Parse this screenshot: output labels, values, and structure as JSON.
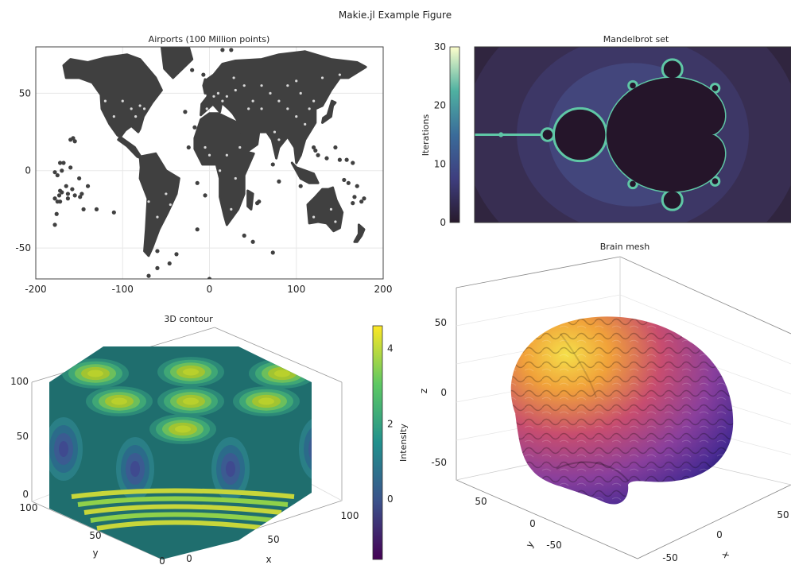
{
  "figure": {
    "title": "Makie.jl Example Figure"
  },
  "chart_data": [
    {
      "type": "scatter",
      "title": "Airports (100 Million points)",
      "xlabel": "",
      "ylabel": "",
      "xlim": [
        -200,
        200
      ],
      "ylim": [
        -70,
        80
      ],
      "xticks": [
        -200,
        -100,
        0,
        100,
        200
      ],
      "xtick_labels": [
        "-200",
        "-100",
        "0",
        "100",
        "200"
      ],
      "yticks": [
        -50,
        0,
        50
      ],
      "ytick_labels": [
        "-50",
        "0",
        "50"
      ],
      "grid": true,
      "color": "#404040",
      "landmasses": [
        {
          "name": "north-america",
          "lonlat": [
            [
              -168,
              68
            ],
            [
              -160,
              72
            ],
            [
              -140,
              70
            ],
            [
              -120,
              73
            ],
            [
              -95,
              75
            ],
            [
              -80,
              72
            ],
            [
              -62,
              60
            ],
            [
              -55,
              52
            ],
            [
              -66,
              44
            ],
            [
              -76,
              35
            ],
            [
              -80,
              27
            ],
            [
              -82,
              25
            ],
            [
              -90,
              29
            ],
            [
              -97,
              26
            ],
            [
              -105,
              20
            ],
            [
              -95,
              16
            ],
            [
              -83,
              9
            ],
            [
              -78,
              8
            ],
            [
              -86,
              15
            ],
            [
              -106,
              23
            ],
            [
              -115,
              30
            ],
            [
              -124,
              40
            ],
            [
              -125,
              49
            ],
            [
              -135,
              57
            ],
            [
              -150,
              60
            ],
            [
              -165,
              60
            ]
          ]
        },
        {
          "name": "greenland",
          "lonlat": [
            [
              -55,
              80
            ],
            [
              -25,
              82
            ],
            [
              -20,
              72
            ],
            [
              -42,
              60
            ],
            [
              -52,
              66
            ]
          ]
        },
        {
          "name": "south-america",
          "lonlat": [
            [
              -80,
              9
            ],
            [
              -62,
              11
            ],
            [
              -50,
              0
            ],
            [
              -35,
              -5
            ],
            [
              -38,
              -15
            ],
            [
              -48,
              -27
            ],
            [
              -58,
              -38
            ],
            [
              -66,
              -50
            ],
            [
              -70,
              -55
            ],
            [
              -75,
              -52
            ],
            [
              -73,
              -38
            ],
            [
              -71,
              -18
            ],
            [
              -80,
              -5
            ],
            [
              -79,
              2
            ]
          ]
        },
        {
          "name": "africa",
          "lonlat": [
            [
              -17,
              21
            ],
            [
              -10,
              33
            ],
            [
              0,
              37
            ],
            [
              10,
              37
            ],
            [
              32,
              31
            ],
            [
              35,
              28
            ],
            [
              43,
              12
            ],
            [
              51,
              11
            ],
            [
              40,
              -3
            ],
            [
              40,
              -15
            ],
            [
              33,
              -25
            ],
            [
              20,
              -35
            ],
            [
              17,
              -29
            ],
            [
              12,
              -17
            ],
            [
              12,
              -5
            ],
            [
              8,
              4
            ],
            [
              -8,
              4
            ],
            [
              -17,
              14
            ]
          ]
        },
        {
          "name": "eurasia",
          "lonlat": [
            [
              -10,
              36
            ],
            [
              -9,
              43
            ],
            [
              -2,
              48
            ],
            [
              -5,
              58
            ],
            [
              5,
              62
            ],
            [
              15,
              69
            ],
            [
              30,
              71
            ],
            [
              60,
              72
            ],
            [
              80,
              75
            ],
            [
              110,
              77
            ],
            [
              140,
              72
            ],
            [
              170,
              70
            ],
            [
              180,
              67
            ],
            [
              160,
              60
            ],
            [
              150,
              60
            ],
            [
              140,
              52
            ],
            [
              130,
              42
            ],
            [
              122,
              40
            ],
            [
              122,
              31
            ],
            [
              110,
              20
            ],
            [
              105,
              10
            ],
            [
              100,
              5
            ],
            [
              98,
              15
            ],
            [
              90,
              22
            ],
            [
              80,
              15
            ],
            [
              77,
              8
            ],
            [
              72,
              20
            ],
            [
              66,
              25
            ],
            [
              57,
              25
            ],
            [
              55,
              17
            ],
            [
              45,
              13
            ],
            [
              38,
              22
            ],
            [
              35,
              30
            ],
            [
              27,
              37
            ],
            [
              22,
              40
            ],
            [
              14,
              44
            ],
            [
              12,
              38
            ],
            [
              4,
              43
            ]
          ]
        },
        {
          "name": "uk",
          "lonlat": [
            [
              -5,
              50
            ],
            [
              1,
              51
            ],
            [
              0,
              57
            ],
            [
              -5,
              59
            ],
            [
              -7,
              55
            ]
          ]
        },
        {
          "name": "japan",
          "lonlat": [
            [
              130,
              31
            ],
            [
              140,
              35
            ],
            [
              142,
              42
            ],
            [
              145,
              44
            ],
            [
              141,
              45
            ],
            [
              136,
              36
            ],
            [
              131,
              34
            ]
          ]
        },
        {
          "name": "indonesia",
          "lonlat": [
            [
              95,
              5
            ],
            [
              105,
              -5
            ],
            [
              115,
              -8
            ],
            [
              125,
              -8
            ],
            [
              120,
              -2
            ],
            [
              110,
              0
            ],
            [
              100,
              2
            ]
          ]
        },
        {
          "name": "australia",
          "lonlat": [
            [
              113,
              -22
            ],
            [
              122,
              -17
            ],
            [
              130,
              -12
            ],
            [
              137,
              -12
            ],
            [
              142,
              -11
            ],
            [
              146,
              -19
            ],
            [
              153,
              -27
            ],
            [
              150,
              -37
            ],
            [
              143,
              -39
            ],
            [
              135,
              -34
            ],
            [
              125,
              -33
            ],
            [
              115,
              -34
            ]
          ]
        },
        {
          "name": "new-zealand",
          "lonlat": [
            [
              172,
              -35
            ],
            [
              178,
              -38
            ],
            [
              175,
              -42
            ],
            [
              170,
              -46
            ],
            [
              167,
              -46
            ],
            [
              172,
              -41
            ]
          ]
        },
        {
          "name": "madagascar",
          "lonlat": [
            [
              44,
              -13
            ],
            [
              50,
              -15
            ],
            [
              48,
              -25
            ],
            [
              44,
              -23
            ]
          ]
        }
      ],
      "islands": [
        [
          -157,
          21
        ],
        [
          -160,
          20
        ],
        [
          -155,
          19
        ],
        [
          -149,
          -17
        ],
        [
          -175,
          -20
        ],
        [
          -178,
          -18
        ],
        [
          -170,
          -14
        ],
        [
          -172,
          -13
        ],
        [
          -140,
          -10
        ],
        [
          -130,
          -25
        ],
        [
          -110,
          -27
        ],
        [
          -165,
          -10
        ],
        [
          -158,
          -12
        ],
        [
          -178,
          -1
        ],
        [
          -175,
          -3
        ],
        [
          -173,
          -16
        ],
        [
          -176,
          -28
        ],
        [
          -178,
          -35
        ],
        [
          -170,
          0
        ],
        [
          -168,
          5
        ],
        [
          -163,
          -15
        ],
        [
          -172,
          -20
        ],
        [
          -60,
          -52
        ],
        [
          -38,
          -54
        ],
        [
          -14,
          -38
        ],
        [
          -24,
          15
        ],
        [
          -28,
          38
        ],
        [
          -17,
          28
        ],
        [
          -20,
          65
        ],
        [
          -7,
          62
        ],
        [
          15,
          78
        ],
        [
          25,
          78
        ],
        [
          55,
          -21
        ],
        [
          57,
          -20
        ],
        [
          73,
          4
        ],
        [
          80,
          -7
        ],
        [
          105,
          -10
        ],
        [
          135,
          8
        ],
        [
          145,
          15
        ],
        [
          150,
          7
        ],
        [
          158,
          7
        ],
        [
          165,
          5
        ],
        [
          170,
          -10
        ],
        [
          167,
          -17
        ],
        [
          178,
          -18
        ],
        [
          165,
          -21
        ],
        [
          155,
          -6
        ],
        [
          160,
          -8
        ],
        [
          175,
          -20
        ],
        [
          -46,
          -60
        ],
        [
          -60,
          -63
        ],
        [
          -70,
          -68
        ],
        [
          0,
          -70
        ],
        [
          165,
          -78
        ],
        [
          73,
          -53
        ],
        [
          50,
          -46
        ],
        [
          -5,
          -16
        ],
        [
          -14,
          -8
        ],
        [
          120,
          15
        ],
        [
          125,
          10
        ],
        [
          122,
          13
        ],
        [
          40,
          -42
        ],
        [
          -155,
          -16
        ],
        [
          -147,
          -15
        ],
        [
          -163,
          -18
        ],
        [
          -172,
          5
        ],
        [
          -160,
          2
        ],
        [
          -150,
          -5
        ],
        [
          -145,
          -25
        ]
      ],
      "scatter_points": [
        [
          -100,
          45
        ],
        [
          -90,
          40
        ],
        [
          -80,
          42
        ],
        [
          -110,
          35
        ],
        [
          -75,
          40
        ],
        [
          10,
          50
        ],
        [
          20,
          48
        ],
        [
          30,
          52
        ],
        [
          40,
          55
        ],
        [
          50,
          45
        ],
        [
          60,
          40
        ],
        [
          70,
          50
        ],
        [
          80,
          45
        ],
        [
          90,
          40
        ],
        [
          100,
          35
        ],
        [
          110,
          30
        ],
        [
          115,
          40
        ],
        [
          105,
          50
        ],
        [
          90,
          55
        ],
        [
          120,
          45
        ],
        [
          15,
          45
        ],
        [
          5,
          48
        ],
        [
          -3,
          40
        ],
        [
          -70,
          -20
        ],
        [
          -50,
          -15
        ],
        [
          25,
          -25
        ],
        [
          30,
          -5
        ],
        [
          20,
          10
        ],
        [
          35,
          15
        ],
        [
          80,
          20
        ],
        [
          75,
          25
        ],
        [
          140,
          -25
        ],
        [
          145,
          -33
        ],
        [
          120,
          -30
        ],
        [
          -120,
          45
        ],
        [
          -85,
          35
        ],
        [
          28,
          60
        ],
        [
          45,
          40
        ],
        [
          60,
          55
        ],
        [
          100,
          58
        ],
        [
          130,
          60
        ],
        [
          150,
          62
        ],
        [
          -60,
          -30
        ],
        [
          -45,
          -22
        ],
        [
          0,
          10
        ],
        [
          -5,
          15
        ],
        [
          12,
          0
        ]
      ]
    },
    {
      "type": "heatmap",
      "title": "Mandelbrot set",
      "colorbar": {
        "label": "Iterations",
        "range": [
          0,
          30
        ],
        "ticks": [
          0,
          10,
          20,
          30
        ],
        "tick_labels": [
          "0",
          "10",
          "20",
          "30"
        ],
        "colormap": "deep"
      },
      "xlim": [
        -2,
        1
      ],
      "ylim": [
        -1,
        1
      ],
      "max_iterations": 30,
      "colors": {
        "background": "#30253f",
        "ring": "#3a3666",
        "edge": "#5fc7a6",
        "inside": "#25152a"
      }
    },
    {
      "type": "contour3d",
      "title": "3D contour",
      "xlabel": "x",
      "ylabel": "y",
      "xticks": [
        0,
        50,
        100
      ],
      "xtick_labels": [
        "0",
        "50",
        "100"
      ],
      "yticks": [
        0,
        50,
        100
      ],
      "ytick_labels": [
        "0",
        "50",
        "100"
      ],
      "zticks": [
        0,
        50,
        100
      ],
      "ztick_labels": [
        "0",
        "50",
        "100"
      ],
      "colorbar": {
        "label": "Intensity",
        "range": [
          -1.6,
          4.6
        ],
        "ticks": [
          0,
          2,
          4
        ],
        "tick_labels": [
          "0",
          "2",
          "4"
        ],
        "colormap": "viridis"
      }
    },
    {
      "type": "mesh3d",
      "title": "Brain mesh",
      "zlabel": "z",
      "xlabel": "x",
      "ylabel": "y",
      "zticks": [
        -50,
        0,
        50
      ],
      "ztick_labels": [
        "-50",
        "0",
        "50"
      ],
      "yticks": [
        50,
        0,
        -50
      ],
      "ytick_labels": [
        "50",
        "0",
        "-50"
      ],
      "xticks": [
        -50,
        0,
        50
      ],
      "xtick_labels": [
        "-50",
        "0",
        "50"
      ],
      "colormap": "plasma"
    }
  ]
}
